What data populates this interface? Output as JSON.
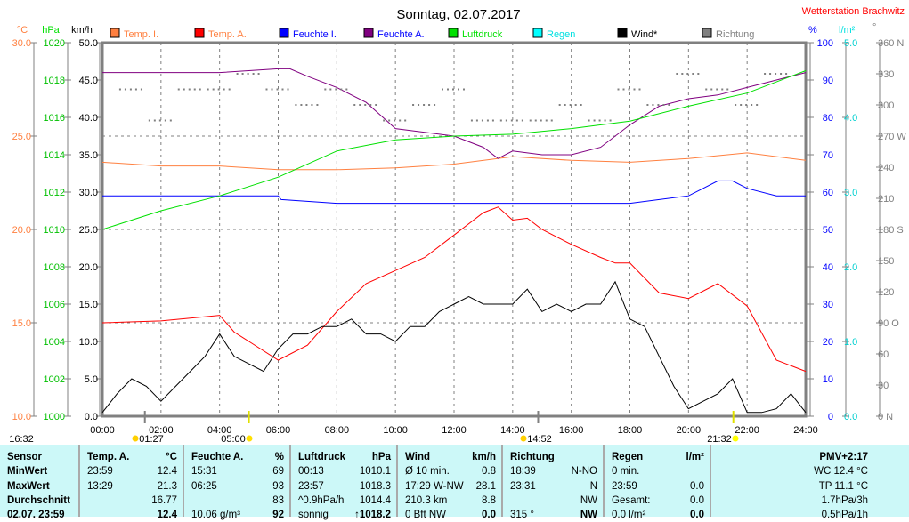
{
  "title": "Sonntag, 02.07.2017",
  "station": "Wetterstation Brachwitz",
  "colors": {
    "temp_i": "#ff8040",
    "temp_a": "#ff0000",
    "feuchte_i": "#0000ff",
    "feuchte_a": "#800080",
    "luftdruck": "#00e000",
    "regen": "#00ffff",
    "wind": "#000000",
    "richtung": "#808080"
  },
  "chart_data": {
    "type": "line",
    "title": "Sonntag, 02.07.2017",
    "legend": [
      "Temp. I.",
      "Temp. A.",
      "Feuchte I.",
      "Feuchte A.",
      "Luftdruck",
      "Regen",
      "Wind*",
      "Richtung"
    ],
    "axes": {
      "celsius": {
        "unit": "°C",
        "range": [
          10,
          30
        ],
        "ticks": [
          "30.0",
          "25.0",
          "20.0",
          "15.0",
          "10.0"
        ]
      },
      "hpa": {
        "unit": "hPa",
        "range": [
          1000,
          1020
        ],
        "ticks": [
          "1020",
          "1018",
          "1016",
          "1014",
          "1012",
          "1010",
          "1008",
          "1006",
          "1004",
          "1002",
          "1000"
        ]
      },
      "kmh": {
        "unit": "km/h",
        "range": [
          0,
          50
        ],
        "ticks": [
          "50.0",
          "45.0",
          "40.0",
          "35.0",
          "30.0",
          "25.0",
          "20.0",
          "15.0",
          "10.0",
          "5.0",
          "0.0"
        ]
      },
      "percent": {
        "unit": "%",
        "range": [
          0,
          100
        ],
        "ticks": [
          "100",
          "90",
          "80",
          "70",
          "60",
          "50",
          "40",
          "30",
          "20",
          "10",
          "0"
        ]
      },
      "rain": {
        "unit": "l/m²",
        "range": [
          0,
          5
        ],
        "ticks": [
          "5.0",
          "4.0",
          "3.0",
          "2.0",
          "1.0",
          "0.0"
        ]
      },
      "deg": {
        "unit": "°",
        "range": [
          0,
          360
        ],
        "ticks": [
          "360 N",
          "330",
          "300",
          "270 W",
          "240",
          "210",
          "180 S",
          "150",
          "120",
          "90 O",
          "60",
          "30",
          "0 N"
        ]
      }
    },
    "x_ticks": [
      "00:00",
      "02:00",
      "04:00",
      "06:00",
      "08:00",
      "10:00",
      "12:00",
      "14:00",
      "16:00",
      "18:00",
      "20:00",
      "22:00",
      "24:00"
    ],
    "series": {
      "temp_i": {
        "axis": "celsius",
        "x": [
          0,
          2,
          4,
          6,
          8,
          10,
          12,
          14,
          16,
          18,
          20,
          22,
          24
        ],
        "y": [
          23.6,
          23.4,
          23.4,
          23.2,
          23.2,
          23.3,
          23.5,
          23.9,
          23.7,
          23.6,
          23.8,
          24.1,
          23.7
        ]
      },
      "temp_a": {
        "axis": "celsius",
        "x": [
          0,
          2,
          4,
          4.5,
          5,
          6,
          7,
          8,
          9,
          10,
          11,
          12,
          13,
          13.5,
          14,
          14.5,
          15,
          16,
          17,
          17.5,
          18,
          19,
          20,
          21,
          22,
          23,
          24
        ],
        "y": [
          15.0,
          15.1,
          15.4,
          14.5,
          14.0,
          13.0,
          13.8,
          15.6,
          17.1,
          17.8,
          18.5,
          19.7,
          20.9,
          21.2,
          20.5,
          20.6,
          20.0,
          19.2,
          18.5,
          18.2,
          18.2,
          16.6,
          16.3,
          17.1,
          15.9,
          13.0,
          12.4
        ]
      },
      "feuchte_i": {
        "axis": "percent",
        "x": [
          0,
          6,
          6.1,
          8,
          10,
          12,
          14,
          16,
          18,
          20,
          20.5,
          21,
          21.5,
          22,
          23,
          24
        ],
        "y": [
          59,
          59,
          58,
          57,
          57,
          57,
          57,
          57,
          57,
          59,
          61,
          63,
          63,
          61,
          59,
          59
        ]
      },
      "feuchte_a": {
        "axis": "percent",
        "x": [
          0,
          2,
          4,
          6,
          6.4,
          7,
          8,
          9,
          10,
          11,
          12,
          13,
          13.5,
          14,
          15,
          16,
          17,
          18,
          19,
          20,
          21,
          22,
          23,
          24
        ],
        "y": [
          92,
          92,
          92,
          93,
          93,
          91,
          88,
          84,
          77,
          76,
          75,
          72,
          69,
          71,
          70,
          70,
          72,
          78,
          83,
          85,
          86,
          88,
          90,
          92
        ]
      },
      "luftdruck": {
        "axis": "hpa",
        "x": [
          0,
          2,
          4,
          6,
          8,
          10,
          12,
          14,
          16,
          18,
          20,
          22,
          24
        ],
        "y": [
          1010.0,
          1011.0,
          1011.8,
          1012.8,
          1014.2,
          1014.8,
          1015.0,
          1015.1,
          1015.4,
          1015.8,
          1016.6,
          1017.3,
          1018.5
        ]
      },
      "wind": {
        "axis": "kmh",
        "x": [
          0,
          0.5,
          1,
          1.5,
          2,
          2.5,
          3,
          3.5,
          4,
          4.5,
          5,
          5.5,
          6,
          6.5,
          7,
          7.5,
          8,
          8.5,
          9,
          9.5,
          10,
          10.5,
          11,
          11.5,
          12,
          12.5,
          13,
          13.5,
          14,
          14.5,
          15,
          15.5,
          16,
          16.5,
          17,
          17.5,
          18,
          18.5,
          19,
          19.5,
          20,
          20.5,
          21,
          21.5,
          22,
          22.5,
          23,
          23.5,
          24
        ],
        "y": [
          0.5,
          3,
          5,
          4,
          2,
          4,
          6,
          8,
          11,
          8,
          7,
          6,
          9,
          11,
          11,
          12,
          12,
          13,
          11,
          11,
          10,
          12,
          12,
          14,
          15,
          16,
          15,
          15,
          15,
          17,
          14,
          15,
          14,
          15,
          15,
          18,
          13,
          12,
          8,
          4,
          1,
          2,
          3,
          5,
          0.5,
          0.5,
          1,
          3,
          0.5
        ]
      },
      "richtung": {
        "axis": "deg",
        "x": [
          1,
          2,
          3,
          4,
          5,
          6,
          7,
          8,
          9,
          10,
          11,
          12,
          13,
          14,
          15,
          16,
          17,
          18,
          19,
          20,
          21,
          22,
          23
        ],
        "y": [
          315,
          285,
          315,
          315,
          330,
          315,
          300,
          315,
          300,
          285,
          300,
          315,
          285,
          285,
          285,
          300,
          285,
          315,
          300,
          330,
          315,
          300,
          330
        ]
      }
    }
  },
  "legend": {
    "temp_i": "Temp. I.",
    "temp_a": "Temp. A.",
    "feuchte_i": "Feuchte I.",
    "feuchte_a": "Feuchte A.",
    "luftdruck": "Luftdruck",
    "regen": "Regen",
    "wind": "Wind*",
    "richtung": "Richtung"
  },
  "units": {
    "c": "°C",
    "hpa": "hPa",
    "kmh": "km/h",
    "pct": "%",
    "rain": "l/m²",
    "deg": "°"
  },
  "events": {
    "moonrise": "16:32",
    "moonset": "01:27",
    "sunrise": "05:00",
    "moon2": "14:52",
    "sunset": "21:32"
  },
  "table": {
    "sensor": {
      "h": "Sensor",
      "min": "MinWert",
      "max": "MaxWert",
      "avg": "Durchschnitt",
      "now": "02.07. 23:59"
    },
    "temp": {
      "h": "Temp. A.",
      "u": "°C",
      "min_t": "23:59",
      "min": "12.4",
      "max_t": "13:29",
      "max": "21.3",
      "avg": "16.77",
      "now": "12.4"
    },
    "hum": {
      "h": "Feuchte A.",
      "u": "%",
      "min_t": "15:31",
      "min": "69",
      "max_t": "06:25",
      "max": "93",
      "avg": "83",
      "now_l": "10.06 g/m³",
      "now": "92"
    },
    "press": {
      "h": "Luftdruck",
      "u": "hPa",
      "min_t": "00:13",
      "min": "1010.1",
      "max_t": "23:57",
      "max": "1018.3",
      "avg_l": "^0.9hPa/h",
      "avg": "1014.4",
      "now_l": "sonnig",
      "now": "↑1018.2"
    },
    "wind": {
      "h": "Wind",
      "u": "km/h",
      "r1_l": "Ø 10 min.",
      "r1": "0.8",
      "r2_l": "17:29  W-NW",
      "r2": "28.1",
      "r3_l": "210.3 km",
      "r3": "8.8",
      "now_l": "0 Bft NW",
      "now": "0.0"
    },
    "dir": {
      "h": "Richtung",
      "r1_l": "18:39",
      "r1": "N-NO",
      "r2_l": "23:31",
      "r2": "N",
      "r3": "NW",
      "now_l": "315 °",
      "now": "NW"
    },
    "rain": {
      "h": "Regen",
      "u": "l/m²",
      "r1_l": "0 min.",
      "r2_l": "23:59",
      "r2": "0.0",
      "r3_l": "Gesamt:",
      "r3": "0.0",
      "now_l": "0.0 l/m²",
      "now": "0.0"
    },
    "extra": {
      "pmv": "PMV+2:17",
      "wc": "WC 12.4 °C",
      "tp": "TP 11.1 °C",
      "p3": "1.7hPa/3h",
      "p1": "0.5hPa/1h"
    }
  }
}
